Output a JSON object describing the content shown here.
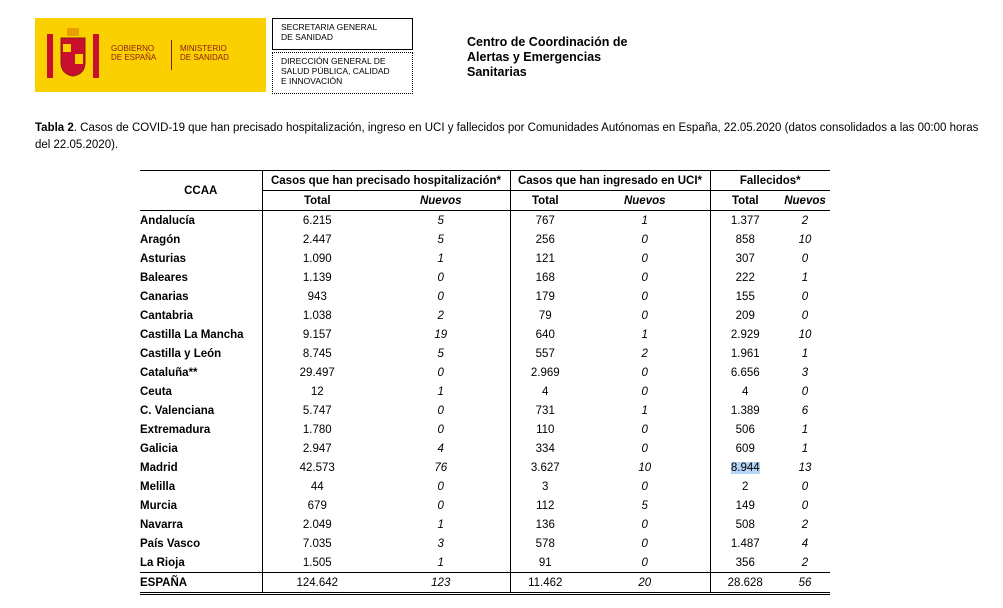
{
  "header": {
    "logo_left": [
      "GOBIERNO",
      "DE ESPAÑA"
    ],
    "logo_right": [
      "MINISTERIO",
      "DE SANIDAD"
    ],
    "box1": [
      "SECRETARIA GENERAL",
      "DE SANIDAD"
    ],
    "box2": [
      "DIRECCIÓN GENERAL DE",
      "SALUD PÚBLICA, CALIDAD",
      "E INNOVACIÓN"
    ],
    "title": [
      "Centro de Coordinación de",
      "Alertas y Emergencias",
      "Sanitarias"
    ]
  },
  "caption": {
    "label": "Tabla 2",
    "text": ". Casos de COVID-19 que han precisado hospitalización, ingreso en UCI y fallecidos por Comunidades Autónomas en España, 22.05.2020 (datos consolidados a las 00:00 horas del 22.05.2020)."
  },
  "table": {
    "groups": [
      "CCAA",
      "Casos que han precisado hospitalización*",
      "Casos que han ingresado en UCI*",
      "Fallecidos*"
    ],
    "subheaders": [
      "Total",
      "Nuevos",
      "Total",
      "Nuevos",
      "Total",
      "Nuevos"
    ],
    "rows": [
      [
        "Andalucía",
        "6.215",
        "5",
        "767",
        "1",
        "1.377",
        "2"
      ],
      [
        "Aragón",
        "2.447",
        "5",
        "256",
        "0",
        "858",
        "10"
      ],
      [
        "Asturias",
        "1.090",
        "1",
        "121",
        "0",
        "307",
        "0"
      ],
      [
        "Baleares",
        "1.139",
        "0",
        "168",
        "0",
        "222",
        "1"
      ],
      [
        "Canarias",
        "943",
        "0",
        "179",
        "0",
        "155",
        "0"
      ],
      [
        "Cantabria",
        "1.038",
        "2",
        "79",
        "0",
        "209",
        "0"
      ],
      [
        "Castilla La Mancha",
        "9.157",
        "19",
        "640",
        "1",
        "2.929",
        "10"
      ],
      [
        "Castilla y León",
        "8.745",
        "5",
        "557",
        "2",
        "1.961",
        "1"
      ],
      [
        "Cataluña**",
        "29.497",
        "0",
        "2.969",
        "0",
        "6.656",
        "3"
      ],
      [
        "Ceuta",
        "12",
        "1",
        "4",
        "0",
        "4",
        "0"
      ],
      [
        "C. Valenciana",
        "5.747",
        "0",
        "731",
        "1",
        "1.389",
        "6"
      ],
      [
        "Extremadura",
        "1.780",
        "0",
        "110",
        "0",
        "506",
        "1"
      ],
      [
        "Galicia",
        "2.947",
        "4",
        "334",
        "0",
        "609",
        "1"
      ],
      [
        "Madrid",
        "42.573",
        "76",
        "3.627",
        "10",
        "8.944",
        "13"
      ],
      [
        "Melilla",
        "44",
        "0",
        "3",
        "0",
        "2",
        "0"
      ],
      [
        "Murcia",
        "679",
        "0",
        "112",
        "5",
        "149",
        "0"
      ],
      [
        "Navarra",
        "2.049",
        "1",
        "136",
        "0",
        "508",
        "2"
      ],
      [
        "País Vasco",
        "7.035",
        "3",
        "578",
        "0",
        "1.487",
        "4"
      ],
      [
        "La Rioja",
        "1.505",
        "1",
        "91",
        "0",
        "356",
        "2"
      ]
    ],
    "total": [
      "ESPAÑA",
      "124.642",
      "123",
      "11.462",
      "20",
      "28.628",
      "56"
    ]
  }
}
